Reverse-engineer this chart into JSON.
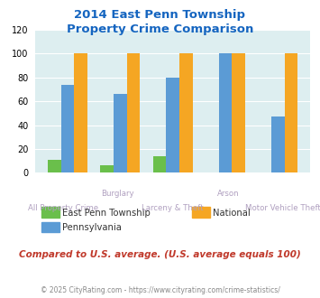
{
  "title": "2014 East Penn Township\nProperty Crime Comparison",
  "categories": [
    "All Property Crime",
    "Burglary",
    "Larceny & Theft",
    "Arson",
    "Motor Vehicle Theft"
  ],
  "series": {
    "East Penn Township": [
      11,
      6,
      14,
      0,
      0
    ],
    "Pennsylvania": [
      74,
      66,
      80,
      100,
      47
    ],
    "National": [
      100,
      100,
      100,
      100,
      100
    ]
  },
  "colors": {
    "East Penn Township": "#6abf4b",
    "Pennsylvania": "#5b9bd5",
    "National": "#f5a623"
  },
  "ylim": [
    0,
    120
  ],
  "yticks": [
    0,
    20,
    40,
    60,
    80,
    100,
    120
  ],
  "title_color": "#1565c0",
  "bg_color": "#ddeef0",
  "label_color": "#b0a0c0",
  "note": "Compared to U.S. average. (U.S. average equals 100)",
  "note_color": "#c0392b",
  "footer": "© 2025 CityRating.com - https://www.cityrating.com/crime-statistics/",
  "footer_color": "#888888",
  "bar_width": 0.25
}
